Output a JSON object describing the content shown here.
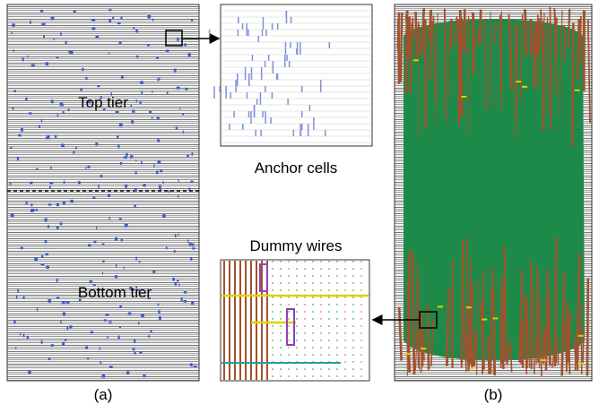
{
  "panel_a": {
    "label": "(a)",
    "top_label": "Top tier",
    "bottom_label": "Bottom tier"
  },
  "panel_b": {
    "label": "(b)"
  },
  "insets": {
    "anchor_label": "Anchor cells",
    "dummy_label": "Dummy wires"
  }
}
